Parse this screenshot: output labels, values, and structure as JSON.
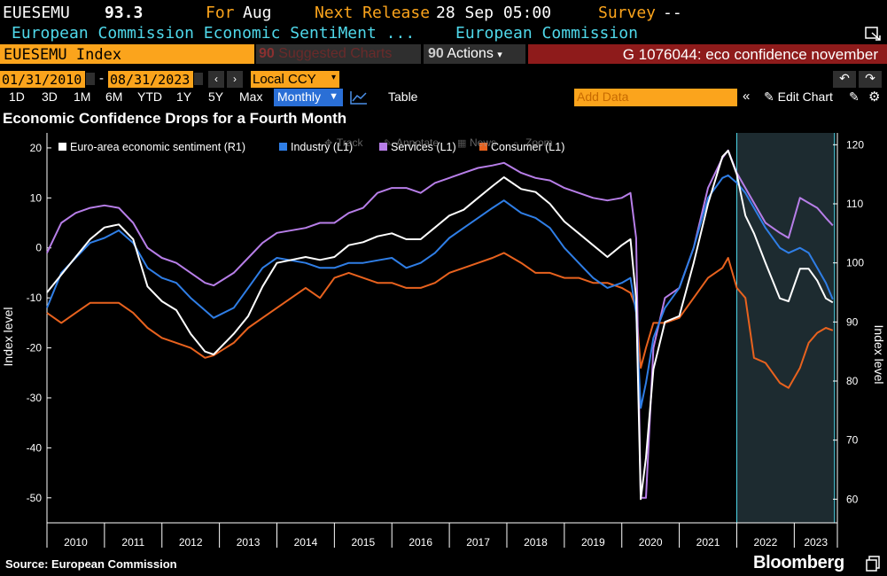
{
  "header": {
    "ticker": "EUESEMU",
    "last_value": "93.3",
    "for_label": "For",
    "for_period": "Aug",
    "next_release_label": "Next Release",
    "next_release_value": "28 Sep 05:00",
    "survey_label": "Survey",
    "survey_value": "--",
    "description": "European Commission Economic SentiMent ...",
    "source_org": "European Commission"
  },
  "toolbar": {
    "security": "EUESEMU Index",
    "suggested_num": "90",
    "suggested_label": "Suggested Charts",
    "actions_num": "90",
    "actions_label": "Actions",
    "chart_id": "G 1076044: eco confidence november",
    "start_date": "01/31/2010",
    "date_sep": "-",
    "end_date": "08/31/2023",
    "currency": "Local CCY",
    "ranges": [
      "1D",
      "3D",
      "1M",
      "6M",
      "YTD",
      "1Y",
      "5Y",
      "Max"
    ],
    "frequency": "Monthly",
    "table_label": "Table",
    "add_data_placeholder": "Add Data",
    "edit_chart_label": "Edit Chart"
  },
  "chart_tools": [
    "Track",
    "Annotate",
    "News",
    "Zoom"
  ],
  "colors": {
    "sentiment": "#ffffff",
    "industry": "#2f7ee6",
    "services": "#b77ee8",
    "consumer": "#e8621e",
    "orange": "#fba41c",
    "cyan": "#4fd8ea",
    "shade": "#1d2b30"
  },
  "chart_data": {
    "type": "line",
    "title": "Economic Confidence Drops for a Fourth Month",
    "source": "Source: European Commission",
    "brand": "Bloomberg",
    "ylabel_left": "Index level",
    "ylabel_right": "Index level",
    "left_axis": {
      "min": -55,
      "max": 23,
      "ticks": [
        20,
        10,
        0,
        -10,
        -20,
        -30,
        -40,
        -50
      ]
    },
    "right_axis": {
      "min": 56,
      "max": 122,
      "ticks": [
        120,
        110,
        100,
        90,
        80,
        70,
        60
      ]
    },
    "x_range": [
      2010.0,
      2023.75
    ],
    "x_tick_labels": [
      "2010",
      "2011",
      "2012",
      "2013",
      "2014",
      "2015",
      "2016",
      "2017",
      "2018",
      "2019",
      "2020",
      "2021",
      "2022",
      "2023"
    ],
    "shaded_period": [
      2022.0,
      2023.7
    ],
    "legend_placement": "top-left",
    "series": [
      {
        "name": "Euro-area economic sentiment (R1)",
        "axis": "right",
        "color": "#ffffff",
        "points": [
          [
            2010.0,
            95
          ],
          [
            2010.25,
            98
          ],
          [
            2010.5,
            101
          ],
          [
            2010.75,
            104
          ],
          [
            2011.0,
            106
          ],
          [
            2011.25,
            106.5
          ],
          [
            2011.5,
            104
          ],
          [
            2011.75,
            96
          ],
          [
            2012.0,
            93.5
          ],
          [
            2012.25,
            92
          ],
          [
            2012.5,
            88
          ],
          [
            2012.75,
            85
          ],
          [
            2012.9,
            84.5
          ],
          [
            2013.25,
            88
          ],
          [
            2013.5,
            91
          ],
          [
            2013.75,
            96
          ],
          [
            2014.0,
            100
          ],
          [
            2014.5,
            101
          ],
          [
            2014.75,
            100.5
          ],
          [
            2015.0,
            101
          ],
          [
            2015.25,
            103
          ],
          [
            2015.5,
            103.5
          ],
          [
            2015.75,
            104.5
          ],
          [
            2016.0,
            105
          ],
          [
            2016.25,
            104
          ],
          [
            2016.5,
            104
          ],
          [
            2016.75,
            106
          ],
          [
            2017.0,
            108
          ],
          [
            2017.25,
            109
          ],
          [
            2017.5,
            111
          ],
          [
            2017.75,
            113
          ],
          [
            2017.95,
            114.5
          ],
          [
            2018.25,
            112.5
          ],
          [
            2018.5,
            112
          ],
          [
            2018.75,
            110
          ],
          [
            2019.0,
            107
          ],
          [
            2019.25,
            105
          ],
          [
            2019.5,
            103
          ],
          [
            2019.75,
            101
          ],
          [
            2020.0,
            103
          ],
          [
            2020.15,
            104
          ],
          [
            2020.25,
            94
          ],
          [
            2020.33,
            60
          ],
          [
            2020.42,
            67
          ],
          [
            2020.55,
            82
          ],
          [
            2020.75,
            90
          ],
          [
            2021.0,
            91
          ],
          [
            2021.25,
            100
          ],
          [
            2021.5,
            110
          ],
          [
            2021.75,
            118
          ],
          [
            2021.85,
            119
          ],
          [
            2022.0,
            115
          ],
          [
            2022.15,
            108
          ],
          [
            2022.3,
            105
          ],
          [
            2022.5,
            100
          ],
          [
            2022.75,
            94
          ],
          [
            2022.9,
            93.5
          ],
          [
            2023.1,
            99
          ],
          [
            2023.25,
            99
          ],
          [
            2023.4,
            97
          ],
          [
            2023.55,
            94
          ],
          [
            2023.67,
            93.3
          ]
        ]
      },
      {
        "name": "Industry (L1)",
        "axis": "left",
        "color": "#2f7ee6",
        "points": [
          [
            2010.0,
            -12
          ],
          [
            2010.25,
            -5
          ],
          [
            2010.5,
            -2
          ],
          [
            2010.75,
            1
          ],
          [
            2011.0,
            2
          ],
          [
            2011.25,
            3.5
          ],
          [
            2011.5,
            1
          ],
          [
            2011.75,
            -4
          ],
          [
            2012.0,
            -6
          ],
          [
            2012.25,
            -7
          ],
          [
            2012.5,
            -10
          ],
          [
            2012.75,
            -12.5
          ],
          [
            2012.9,
            -14
          ],
          [
            2013.25,
            -12
          ],
          [
            2013.5,
            -8
          ],
          [
            2013.75,
            -4
          ],
          [
            2014.0,
            -2
          ],
          [
            2014.5,
            -3
          ],
          [
            2014.75,
            -4
          ],
          [
            2015.0,
            -4
          ],
          [
            2015.25,
            -3
          ],
          [
            2015.5,
            -3
          ],
          [
            2015.75,
            -2.5
          ],
          [
            2016.0,
            -2
          ],
          [
            2016.25,
            -4
          ],
          [
            2016.5,
            -3
          ],
          [
            2016.75,
            -1
          ],
          [
            2017.0,
            2
          ],
          [
            2017.25,
            4
          ],
          [
            2017.5,
            6
          ],
          [
            2017.75,
            8
          ],
          [
            2017.95,
            9.5
          ],
          [
            2018.25,
            7
          ],
          [
            2018.5,
            6
          ],
          [
            2018.75,
            4
          ],
          [
            2019.0,
            0
          ],
          [
            2019.25,
            -3
          ],
          [
            2019.5,
            -6
          ],
          [
            2019.75,
            -8
          ],
          [
            2020.0,
            -7
          ],
          [
            2020.15,
            -6
          ],
          [
            2020.25,
            -13
          ],
          [
            2020.33,
            -32
          ],
          [
            2020.42,
            -27
          ],
          [
            2020.55,
            -18
          ],
          [
            2020.75,
            -12
          ],
          [
            2021.0,
            -8
          ],
          [
            2021.25,
            0
          ],
          [
            2021.5,
            10
          ],
          [
            2021.75,
            14
          ],
          [
            2021.85,
            14.5
          ],
          [
            2022.0,
            13
          ],
          [
            2022.15,
            11
          ],
          [
            2022.3,
            8
          ],
          [
            2022.5,
            4
          ],
          [
            2022.75,
            0
          ],
          [
            2022.9,
            -1
          ],
          [
            2023.1,
            0
          ],
          [
            2023.25,
            -1
          ],
          [
            2023.4,
            -4
          ],
          [
            2023.55,
            -7
          ],
          [
            2023.67,
            -10.3
          ]
        ]
      },
      {
        "name": "Services (L1)",
        "axis": "left",
        "color": "#b77ee8",
        "points": [
          [
            2010.0,
            -1
          ],
          [
            2010.25,
            5
          ],
          [
            2010.5,
            7
          ],
          [
            2010.75,
            8
          ],
          [
            2011.0,
            8.5
          ],
          [
            2011.25,
            8
          ],
          [
            2011.5,
            5
          ],
          [
            2011.75,
            0
          ],
          [
            2012.0,
            -2
          ],
          [
            2012.25,
            -3
          ],
          [
            2012.5,
            -5
          ],
          [
            2012.75,
            -7
          ],
          [
            2012.9,
            -7.5
          ],
          [
            2013.25,
            -5
          ],
          [
            2013.5,
            -2
          ],
          [
            2013.75,
            1
          ],
          [
            2014.0,
            3
          ],
          [
            2014.5,
            4
          ],
          [
            2014.75,
            5
          ],
          [
            2015.0,
            5
          ],
          [
            2015.25,
            7
          ],
          [
            2015.5,
            8
          ],
          [
            2015.75,
            11
          ],
          [
            2016.0,
            12
          ],
          [
            2016.25,
            12
          ],
          [
            2016.5,
            11
          ],
          [
            2016.75,
            13
          ],
          [
            2017.0,
            14
          ],
          [
            2017.25,
            15
          ],
          [
            2017.5,
            16
          ],
          [
            2017.75,
            16.5
          ],
          [
            2017.95,
            17
          ],
          [
            2018.25,
            15
          ],
          [
            2018.5,
            14
          ],
          [
            2018.75,
            13.5
          ],
          [
            2019.0,
            12
          ],
          [
            2019.25,
            11
          ],
          [
            2019.5,
            10
          ],
          [
            2019.75,
            9.5
          ],
          [
            2020.0,
            10
          ],
          [
            2020.15,
            11
          ],
          [
            2020.25,
            2
          ],
          [
            2020.33,
            -50
          ],
          [
            2020.42,
            -50
          ],
          [
            2020.55,
            -20
          ],
          [
            2020.75,
            -10
          ],
          [
            2021.0,
            -8
          ],
          [
            2021.25,
            0
          ],
          [
            2021.5,
            12
          ],
          [
            2021.75,
            18
          ],
          [
            2021.85,
            19.5
          ],
          [
            2022.0,
            15
          ],
          [
            2022.15,
            12
          ],
          [
            2022.3,
            9
          ],
          [
            2022.5,
            5
          ],
          [
            2022.75,
            3
          ],
          [
            2022.9,
            2
          ],
          [
            2023.1,
            10
          ],
          [
            2023.25,
            9
          ],
          [
            2023.4,
            8
          ],
          [
            2023.55,
            6
          ],
          [
            2023.67,
            4.5
          ]
        ]
      },
      {
        "name": "Consumer (L1)",
        "axis": "left",
        "color": "#e8621e",
        "points": [
          [
            2010.0,
            -13
          ],
          [
            2010.25,
            -15
          ],
          [
            2010.5,
            -13
          ],
          [
            2010.75,
            -11
          ],
          [
            2011.0,
            -11
          ],
          [
            2011.25,
            -11
          ],
          [
            2011.5,
            -13
          ],
          [
            2011.75,
            -16
          ],
          [
            2012.0,
            -18
          ],
          [
            2012.25,
            -19
          ],
          [
            2012.5,
            -20
          ],
          [
            2012.75,
            -22
          ],
          [
            2012.9,
            -21.5
          ],
          [
            2013.25,
            -19
          ],
          [
            2013.5,
            -16
          ],
          [
            2013.75,
            -14
          ],
          [
            2014.0,
            -12
          ],
          [
            2014.5,
            -8
          ],
          [
            2014.75,
            -10
          ],
          [
            2015.0,
            -6
          ],
          [
            2015.25,
            -5
          ],
          [
            2015.5,
            -6
          ],
          [
            2015.75,
            -7
          ],
          [
            2016.0,
            -7
          ],
          [
            2016.25,
            -8
          ],
          [
            2016.5,
            -8
          ],
          [
            2016.75,
            -7
          ],
          [
            2017.0,
            -5
          ],
          [
            2017.25,
            -4
          ],
          [
            2017.5,
            -3
          ],
          [
            2017.75,
            -2
          ],
          [
            2017.95,
            -1
          ],
          [
            2018.25,
            -3
          ],
          [
            2018.5,
            -5
          ],
          [
            2018.75,
            -5
          ],
          [
            2019.0,
            -6
          ],
          [
            2019.25,
            -6
          ],
          [
            2019.5,
            -7
          ],
          [
            2019.75,
            -7
          ],
          [
            2020.0,
            -8
          ],
          [
            2020.15,
            -9
          ],
          [
            2020.25,
            -12
          ],
          [
            2020.33,
            -24
          ],
          [
            2020.42,
            -20
          ],
          [
            2020.55,
            -15
          ],
          [
            2020.75,
            -15
          ],
          [
            2021.0,
            -14
          ],
          [
            2021.25,
            -10
          ],
          [
            2021.5,
            -6
          ],
          [
            2021.75,
            -4
          ],
          [
            2021.85,
            -2
          ],
          [
            2022.0,
            -8
          ],
          [
            2022.15,
            -10
          ],
          [
            2022.3,
            -22
          ],
          [
            2022.5,
            -23
          ],
          [
            2022.75,
            -27
          ],
          [
            2022.9,
            -28
          ],
          [
            2023.1,
            -24
          ],
          [
            2023.25,
            -19
          ],
          [
            2023.4,
            -17
          ],
          [
            2023.55,
            -16
          ],
          [
            2023.67,
            -16.5
          ]
        ]
      }
    ]
  }
}
